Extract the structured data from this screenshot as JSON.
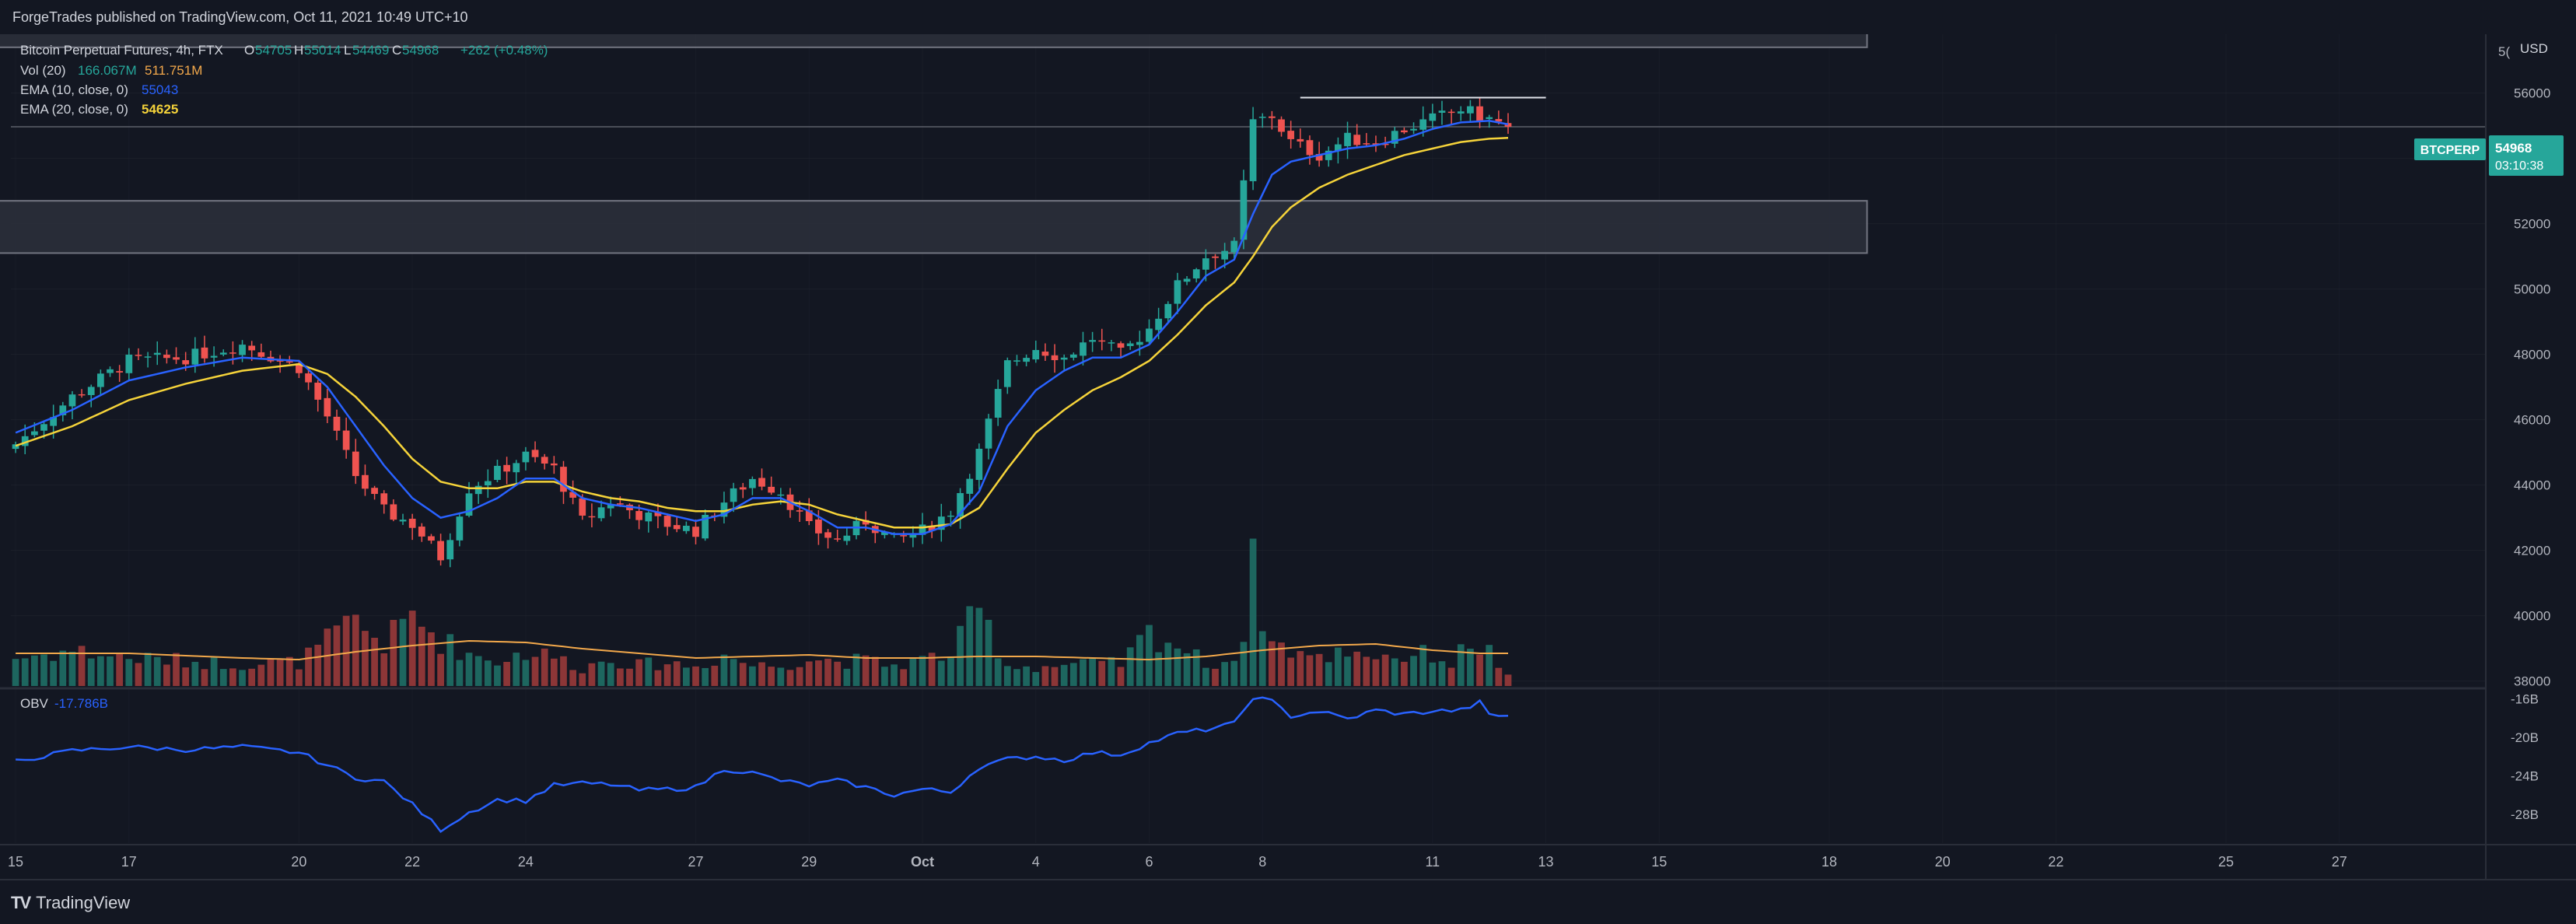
{
  "header": {
    "publisher_line": "ForgeTrades published on TradingView.com, Oct 11, 2021 10:49 UTC+10"
  },
  "footer": {
    "brand": "TradingView",
    "brand_mark": "TV"
  },
  "colors": {
    "background": "#131722",
    "up": "#26a69a",
    "down": "#ef5350",
    "vol_up": "#1f6f66",
    "vol_down": "#9a3a3a",
    "ema10": "#2962ff",
    "ema20": "#f5d33a",
    "obv": "#2962ff",
    "vol_ma": "#f2a84b",
    "badge": "#26a69a",
    "zone": "#2a2e39",
    "grid": "#2a2e39"
  },
  "legend": {
    "symbol": "Bitcoin Perpetual Futures, 4h, FTX",
    "o_label": "O",
    "o_value": "54705",
    "h_label": "H",
    "h_value": "55014",
    "l_label": "L",
    "l_value": "54469",
    "c_label": "C",
    "c_value": "54968",
    "change": "+262 (+0.48%)",
    "vol_label": "Vol (20)",
    "vol_value1": "166.067M",
    "vol_value2": "511.751M",
    "ema10_label": "EMA (10, close, 0)",
    "ema10_value": "55043",
    "ema20_label": "EMA (20, close, 0)",
    "ema20_value": "54625",
    "obv_label": "OBV",
    "obv_value": "-17.786B"
  },
  "price_scale": {
    "currency": "USD",
    "partial_top": "5("
  },
  "price_badge": {
    "symbol": "BTCPERP",
    "price": "54968",
    "countdown": "03:10:38"
  },
  "chart_data": {
    "type": "candlestick",
    "title": "Bitcoin Perpetual Futures, 4h, FTX",
    "y_ticks": [
      38000,
      40000,
      42000,
      44000,
      46000,
      48000,
      50000,
      52000,
      54000,
      56000
    ],
    "ylim": [
      37800,
      57800
    ],
    "obv_ticks": [
      "-16B",
      "-20B",
      "-24B",
      "-28B"
    ],
    "obv_tick_values": [
      -16,
      -20,
      -24,
      -28
    ],
    "obv_ylim": [
      -31,
      -15
    ],
    "x_ticks": [
      "15",
      "17",
      "20",
      "22",
      "24",
      "27",
      "29",
      "Oct",
      "4",
      "6",
      "8",
      "11",
      "13",
      "15",
      "18",
      "20",
      "22",
      "25",
      "27"
    ],
    "x_tick_bar_index": [
      0,
      12,
      30,
      42,
      54,
      72,
      84,
      96,
      108,
      120,
      132,
      150,
      162,
      174,
      192,
      204,
      216,
      234,
      246
    ],
    "bars_total_span": 262,
    "zones": [
      {
        "low": 51100,
        "high": 52700
      },
      {
        "low": 57400,
        "high": 58600
      }
    ],
    "resistance": {
      "price": 55860,
      "start_bar": 136,
      "end_bar": 162
    },
    "current_price": 54968,
    "anchors": {
      "close": [
        [
          0,
          45250
        ],
        [
          6,
          46700
        ],
        [
          12,
          47800
        ],
        [
          18,
          47900
        ],
        [
          24,
          48300
        ],
        [
          30,
          47600
        ],
        [
          33,
          46100
        ],
        [
          36,
          44300
        ],
        [
          39,
          43200
        ],
        [
          42,
          42800
        ],
        [
          45,
          41800
        ],
        [
          48,
          43900
        ],
        [
          51,
          44400
        ],
        [
          54,
          44900
        ],
        [
          57,
          44500
        ],
        [
          60,
          42900
        ],
        [
          63,
          43500
        ],
        [
          66,
          43100
        ],
        [
          69,
          42800
        ],
        [
          72,
          42600
        ],
        [
          75,
          43500
        ],
        [
          78,
          44200
        ],
        [
          81,
          43800
        ],
        [
          84,
          42700
        ],
        [
          87,
          42300
        ],
        [
          90,
          42900
        ],
        [
          93,
          42300
        ],
        [
          96,
          42600
        ],
        [
          99,
          43200
        ],
        [
          102,
          45000
        ],
        [
          105,
          47700
        ],
        [
          108,
          48200
        ],
        [
          111,
          47900
        ],
        [
          114,
          48500
        ],
        [
          117,
          48000
        ],
        [
          120,
          48800
        ],
        [
          123,
          50100
        ],
        [
          126,
          51000
        ],
        [
          129,
          51300
        ],
        [
          131,
          55100
        ],
        [
          133,
          55300
        ],
        [
          135,
          54500
        ],
        [
          138,
          54100
        ],
        [
          141,
          54600
        ],
        [
          144,
          54500
        ],
        [
          147,
          54900
        ],
        [
          150,
          55200
        ],
        [
          153,
          55500
        ],
        [
          156,
          55200
        ],
        [
          158,
          54968
        ]
      ],
      "ema10": [
        [
          0,
          45600
        ],
        [
          6,
          46300
        ],
        [
          12,
          47200
        ],
        [
          18,
          47600
        ],
        [
          24,
          47900
        ],
        [
          30,
          47800
        ],
        [
          33,
          47000
        ],
        [
          36,
          45800
        ],
        [
          39,
          44600
        ],
        [
          42,
          43600
        ],
        [
          45,
          43000
        ],
        [
          48,
          43200
        ],
        [
          51,
          43600
        ],
        [
          54,
          44200
        ],
        [
          57,
          44200
        ],
        [
          60,
          43600
        ],
        [
          63,
          43400
        ],
        [
          66,
          43300
        ],
        [
          69,
          43100
        ],
        [
          72,
          42900
        ],
        [
          75,
          43100
        ],
        [
          78,
          43600
        ],
        [
          81,
          43600
        ],
        [
          84,
          43200
        ],
        [
          87,
          42700
        ],
        [
          90,
          42700
        ],
        [
          93,
          42500
        ],
        [
          96,
          42500
        ],
        [
          99,
          42800
        ],
        [
          102,
          43800
        ],
        [
          105,
          45800
        ],
        [
          108,
          46900
        ],
        [
          111,
          47500
        ],
        [
          114,
          47900
        ],
        [
          117,
          47900
        ],
        [
          120,
          48300
        ],
        [
          123,
          49300
        ],
        [
          126,
          50400
        ],
        [
          129,
          50900
        ],
        [
          131,
          52300
        ],
        [
          133,
          53500
        ],
        [
          135,
          53900
        ],
        [
          138,
          54100
        ],
        [
          141,
          54300
        ],
        [
          144,
          54400
        ],
        [
          147,
          54600
        ],
        [
          150,
          54900
        ],
        [
          153,
          55100
        ],
        [
          156,
          55150
        ],
        [
          158,
          55043
        ]
      ],
      "ema20": [
        [
          0,
          45200
        ],
        [
          6,
          45800
        ],
        [
          12,
          46600
        ],
        [
          18,
          47100
        ],
        [
          24,
          47500
        ],
        [
          30,
          47700
        ],
        [
          33,
          47400
        ],
        [
          36,
          46700
        ],
        [
          39,
          45800
        ],
        [
          42,
          44800
        ],
        [
          45,
          44100
        ],
        [
          48,
          43900
        ],
        [
          51,
          43900
        ],
        [
          54,
          44100
        ],
        [
          57,
          44100
        ],
        [
          60,
          43800
        ],
        [
          63,
          43600
        ],
        [
          66,
          43500
        ],
        [
          69,
          43300
        ],
        [
          72,
          43200
        ],
        [
          75,
          43200
        ],
        [
          78,
          43400
        ],
        [
          81,
          43500
        ],
        [
          84,
          43400
        ],
        [
          87,
          43100
        ],
        [
          90,
          42900
        ],
        [
          93,
          42700
        ],
        [
          96,
          42700
        ],
        [
          99,
          42800
        ],
        [
          102,
          43300
        ],
        [
          105,
          44500
        ],
        [
          108,
          45600
        ],
        [
          111,
          46300
        ],
        [
          114,
          46900
        ],
        [
          117,
          47300
        ],
        [
          120,
          47800
        ],
        [
          123,
          48600
        ],
        [
          126,
          49500
        ],
        [
          129,
          50200
        ],
        [
          131,
          51000
        ],
        [
          133,
          51900
        ],
        [
          135,
          52500
        ],
        [
          138,
          53100
        ],
        [
          141,
          53500
        ],
        [
          144,
          53800
        ],
        [
          147,
          54100
        ],
        [
          150,
          54300
        ],
        [
          153,
          54500
        ],
        [
          156,
          54600
        ],
        [
          158,
          54625
        ]
      ],
      "obv": [
        [
          0,
          -22.5
        ],
        [
          6,
          -21.4
        ],
        [
          12,
          -21.0
        ],
        [
          18,
          -21.3
        ],
        [
          24,
          -21.0
        ],
        [
          30,
          -21.6
        ],
        [
          33,
          -22.9
        ],
        [
          36,
          -24.2
        ],
        [
          39,
          -24.6
        ],
        [
          42,
          -27.0
        ],
        [
          45,
          -29.6
        ],
        [
          48,
          -27.8
        ],
        [
          51,
          -26.5
        ],
        [
          54,
          -26.6
        ],
        [
          57,
          -25.0
        ],
        [
          60,
          -24.8
        ],
        [
          63,
          -24.9
        ],
        [
          66,
          -25.5
        ],
        [
          69,
          -25.4
        ],
        [
          72,
          -25.2
        ],
        [
          75,
          -23.3
        ],
        [
          78,
          -23.7
        ],
        [
          81,
          -24.5
        ],
        [
          84,
          -25.0
        ],
        [
          87,
          -24.5
        ],
        [
          90,
          -25.2
        ],
        [
          93,
          -26.0
        ],
        [
          96,
          -25.4
        ],
        [
          99,
          -25.7
        ],
        [
          102,
          -23.1
        ],
        [
          105,
          -22.3
        ],
        [
          108,
          -22.0
        ],
        [
          111,
          -22.4
        ],
        [
          114,
          -21.6
        ],
        [
          117,
          -21.8
        ],
        [
          120,
          -20.6
        ],
        [
          123,
          -19.6
        ],
        [
          126,
          -19.2
        ],
        [
          129,
          -18.6
        ],
        [
          131,
          -15.8
        ],
        [
          133,
          -16.3
        ],
        [
          135,
          -17.8
        ],
        [
          138,
          -17.3
        ],
        [
          141,
          -18.1
        ],
        [
          144,
          -17.2
        ],
        [
          147,
          -17.6
        ],
        [
          150,
          -17.3
        ],
        [
          153,
          -17.2
        ],
        [
          155,
          -16.4
        ],
        [
          156,
          -17.7
        ],
        [
          158,
          -17.786
        ]
      ],
      "volume": [
        [
          0,
          19
        ],
        [
          6,
          24
        ],
        [
          12,
          19
        ],
        [
          18,
          17
        ],
        [
          24,
          15
        ],
        [
          30,
          16
        ],
        [
          33,
          30
        ],
        [
          36,
          44
        ],
        [
          39,
          28
        ],
        [
          42,
          48
        ],
        [
          45,
          31
        ],
        [
          48,
          22
        ],
        [
          51,
          17
        ],
        [
          54,
          23
        ],
        [
          57,
          20
        ],
        [
          60,
          12
        ],
        [
          63,
          19
        ],
        [
          66,
          14
        ],
        [
          69,
          16
        ],
        [
          72,
          13
        ],
        [
          75,
          21
        ],
        [
          78,
          14
        ],
        [
          81,
          14
        ],
        [
          84,
          19
        ],
        [
          87,
          17
        ],
        [
          90,
          17
        ],
        [
          93,
          14
        ],
        [
          96,
          18
        ],
        [
          99,
          22
        ],
        [
          102,
          51
        ],
        [
          105,
          14
        ],
        [
          108,
          13
        ],
        [
          111,
          14
        ],
        [
          114,
          15
        ],
        [
          117,
          15
        ],
        [
          120,
          36
        ],
        [
          123,
          28
        ],
        [
          126,
          15
        ],
        [
          129,
          18
        ],
        [
          130,
          40
        ],
        [
          131,
          77
        ],
        [
          133,
          29
        ],
        [
          135,
          25
        ],
        [
          138,
          18
        ],
        [
          141,
          25
        ],
        [
          144,
          21
        ],
        [
          147,
          20
        ],
        [
          150,
          22
        ],
        [
          152,
          15
        ],
        [
          154,
          30
        ],
        [
          156,
          23
        ],
        [
          158,
          6
        ]
      ],
      "vol_ma": [
        [
          0,
          21
        ],
        [
          12,
          21
        ],
        [
          24,
          18
        ],
        [
          30,
          17
        ],
        [
          36,
          22
        ],
        [
          42,
          26
        ],
        [
          48,
          29
        ],
        [
          54,
          28
        ],
        [
          60,
          24
        ],
        [
          66,
          21
        ],
        [
          72,
          18
        ],
        [
          78,
          19
        ],
        [
          84,
          20
        ],
        [
          90,
          18
        ],
        [
          96,
          18
        ],
        [
          102,
          19
        ],
        [
          108,
          19
        ],
        [
          114,
          18
        ],
        [
          120,
          17
        ],
        [
          126,
          19
        ],
        [
          132,
          23
        ],
        [
          138,
          26
        ],
        [
          144,
          27
        ],
        [
          150,
          23
        ],
        [
          155,
          21
        ],
        [
          158,
          21
        ]
      ]
    },
    "n_candles": 159,
    "volume_scale_max": 100,
    "zone_left_bar": -2,
    "zone_right_bar": 196
  }
}
